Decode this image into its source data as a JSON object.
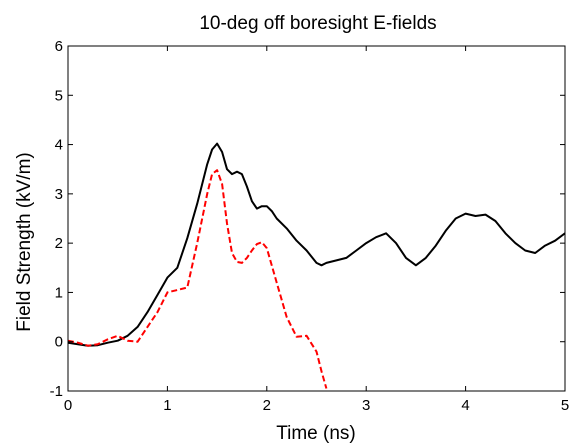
{
  "chart_data": {
    "type": "line",
    "title": "10-deg off boresight E-fields",
    "xlabel": "Time (ns)",
    "ylabel": "Field Strength (kV/m)",
    "xlim": [
      0,
      5
    ],
    "ylim": [
      -1,
      6
    ],
    "xticks": [
      0,
      1,
      2,
      3,
      4,
      5
    ],
    "yticks": [
      -1,
      0,
      1,
      2,
      3,
      4,
      5,
      6
    ],
    "x_tick_labels": [
      "0",
      "1",
      "2",
      "3",
      "4",
      "5"
    ],
    "y_tick_labels": [
      "-1",
      "0",
      "1",
      "2",
      "3",
      "4",
      "5",
      "6"
    ],
    "grid": false,
    "legend": "none",
    "series": [
      {
        "color": "#000000",
        "style": "solid",
        "x": [
          0,
          0.1,
          0.2,
          0.3,
          0.4,
          0.5,
          0.6,
          0.7,
          0.8,
          0.9,
          1.0,
          1.1,
          1.2,
          1.3,
          1.4,
          1.45,
          1.5,
          1.55,
          1.6,
          1.65,
          1.7,
          1.75,
          1.8,
          1.85,
          1.9,
          1.95,
          2.0,
          2.05,
          2.1,
          2.2,
          2.3,
          2.4,
          2.5,
          2.55,
          2.6,
          2.7,
          2.8,
          2.9,
          3.0,
          3.1,
          3.2,
          3.3,
          3.4,
          3.5,
          3.6,
          3.7,
          3.8,
          3.9,
          4.0,
          4.1,
          4.2,
          4.3,
          4.4,
          4.5,
          4.6,
          4.7,
          4.8,
          4.9,
          5.0
        ],
        "y": [
          -0.02,
          -0.05,
          -0.08,
          -0.07,
          -0.02,
          0.02,
          0.12,
          0.3,
          0.6,
          0.95,
          1.3,
          1.5,
          2.1,
          2.8,
          3.6,
          3.9,
          4.02,
          3.85,
          3.5,
          3.4,
          3.45,
          3.4,
          3.15,
          2.85,
          2.7,
          2.75,
          2.75,
          2.65,
          2.5,
          2.3,
          2.05,
          1.85,
          1.6,
          1.55,
          1.6,
          1.65,
          1.7,
          1.85,
          2.0,
          2.12,
          2.2,
          2.0,
          1.7,
          1.55,
          1.7,
          1.95,
          2.25,
          2.5,
          2.6,
          2.55,
          2.58,
          2.45,
          2.2,
          2.0,
          1.85,
          1.8,
          1.95,
          2.05,
          2.2
        ]
      },
      {
        "color": "#ff0000",
        "style": "dashed",
        "x": [
          0,
          0.1,
          0.2,
          0.3,
          0.4,
          0.5,
          0.6,
          0.7,
          0.8,
          0.9,
          1.0,
          1.1,
          1.2,
          1.3,
          1.4,
          1.45,
          1.5,
          1.55,
          1.6,
          1.65,
          1.7,
          1.75,
          1.8,
          1.85,
          1.9,
          1.95,
          2.0,
          2.1,
          2.2,
          2.3,
          2.4,
          2.5,
          2.55,
          2.6
        ],
        "y": [
          0.02,
          -0.02,
          -0.08,
          -0.05,
          0.05,
          0.12,
          0.02,
          0.0,
          0.3,
          0.6,
          1.0,
          1.05,
          1.1,
          2.0,
          3.0,
          3.4,
          3.48,
          3.2,
          2.4,
          1.8,
          1.62,
          1.6,
          1.7,
          1.85,
          1.98,
          2.02,
          1.9,
          1.2,
          0.5,
          0.1,
          0.12,
          -0.2,
          -0.6,
          -0.95
        ]
      }
    ]
  }
}
